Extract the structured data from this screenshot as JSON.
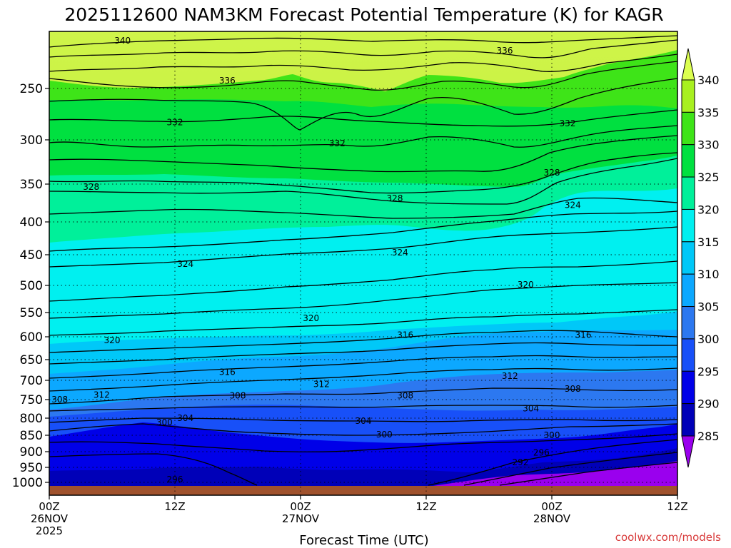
{
  "chart_data": {
    "type": "contour",
    "title": "2025112600 NAM3KM Forecast Potential Temperature (K) for KAGR",
    "xlabel": "Forecast Time (UTC)",
    "ylabel": "",
    "credit": "coolwx.com/models",
    "x_ticks": [
      {
        "hour": 0,
        "l1": "00Z",
        "l2": "26NOV",
        "l3": "2025"
      },
      {
        "hour": 12,
        "l1": "12Z",
        "l2": "",
        "l3": ""
      },
      {
        "hour": 24,
        "l1": "00Z",
        "l2": "27NOV",
        "l3": ""
      },
      {
        "hour": 36,
        "l1": "12Z",
        "l2": "",
        "l3": ""
      },
      {
        "hour": 48,
        "l1": "00Z",
        "l2": "28NOV",
        "l3": ""
      },
      {
        "hour": 60,
        "l1": "12Z",
        "l2": "",
        "l3": ""
      }
    ],
    "x_range_hours": [
      0,
      60
    ],
    "y_ticks_hpa": [
      250,
      300,
      350,
      400,
      450,
      500,
      550,
      600,
      650,
      700,
      750,
      800,
      850,
      900,
      950,
      1000
    ],
    "y_range_hpa": [
      200,
      1015
    ],
    "colorbar": {
      "levels": [
        285,
        290,
        295,
        300,
        305,
        310,
        315,
        320,
        325,
        330,
        335,
        340
      ],
      "labels": [
        "285",
        "290",
        "295",
        "300",
        "305",
        "310",
        "315",
        "320",
        "325",
        "330",
        "335",
        "340"
      ],
      "band_colors": [
        "#9a00ee",
        "#0000b8",
        "#0000e8",
        "#1850f8",
        "#2c78f0",
        "#0ca8ff",
        "#00c8f8",
        "#00f0f0",
        "#00f09a",
        "#00e040",
        "#3ee418",
        "#a8f020",
        "#dcff50"
      ]
    },
    "isentropes_k": [
      296,
      300,
      304,
      308,
      312,
      316,
      320,
      324,
      328,
      332,
      336,
      340
    ],
    "contour_labels": [
      {
        "value": "340",
        "hour": 7.0,
        "hpa": 208
      },
      {
        "value": "336",
        "hour": 17.0,
        "hpa": 243
      },
      {
        "value": "336",
        "hour": 43.5,
        "hpa": 217
      },
      {
        "value": "332",
        "hour": 12.0,
        "hpa": 283
      },
      {
        "value": "332",
        "hour": 27.5,
        "hpa": 304
      },
      {
        "value": "332",
        "hour": 49.5,
        "hpa": 284
      },
      {
        "value": "328",
        "hour": 4.0,
        "hpa": 354
      },
      {
        "value": "328",
        "hour": 33.0,
        "hpa": 369
      },
      {
        "value": "328",
        "hour": 48.0,
        "hpa": 337
      },
      {
        "value": "324",
        "hour": 13.0,
        "hpa": 465
      },
      {
        "value": "324",
        "hour": 33.5,
        "hpa": 447
      },
      {
        "value": "324",
        "hour": 50.0,
        "hpa": 378
      },
      {
        "value": "320",
        "hour": 6.0,
        "hpa": 608
      },
      {
        "value": "320",
        "hour": 25.0,
        "hpa": 562
      },
      {
        "value": "320",
        "hour": 45.5,
        "hpa": 499
      },
      {
        "value": "316",
        "hour": 17.0,
        "hpa": 680
      },
      {
        "value": "316",
        "hour": 34.0,
        "hpa": 596
      },
      {
        "value": "316",
        "hour": 51.0,
        "hpa": 596
      },
      {
        "value": "312",
        "hour": 5.0,
        "hpa": 738
      },
      {
        "value": "312",
        "hour": 26.0,
        "hpa": 710
      },
      {
        "value": "312",
        "hour": 44.0,
        "hpa": 690
      },
      {
        "value": "308",
        "hour": 1.0,
        "hpa": 750
      },
      {
        "value": "308",
        "hour": 18.0,
        "hpa": 740
      },
      {
        "value": "308",
        "hour": 34.0,
        "hpa": 740
      },
      {
        "value": "308",
        "hour": 50.0,
        "hpa": 722
      },
      {
        "value": "304",
        "hour": 13.0,
        "hpa": 800
      },
      {
        "value": "304",
        "hour": 30.0,
        "hpa": 808
      },
      {
        "value": "304",
        "hour": 46.0,
        "hpa": 774
      },
      {
        "value": "300",
        "hour": 11.0,
        "hpa": 812
      },
      {
        "value": "300",
        "hour": 32.0,
        "hpa": 848
      },
      {
        "value": "300",
        "hour": 48.0,
        "hpa": 850
      },
      {
        "value": "296",
        "hour": 12.0,
        "hpa": 990
      },
      {
        "value": "296",
        "hour": 47.0,
        "hpa": 903
      },
      {
        "value": "292",
        "hour": 45.0,
        "hpa": 934
      }
    ]
  }
}
